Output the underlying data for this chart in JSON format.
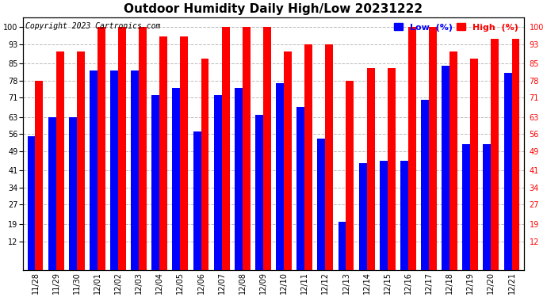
{
  "title": "Outdoor Humidity Daily High/Low 20231222",
  "copyright": "Copyright 2023 Cartronics.com",
  "yticks": [
    12,
    19,
    27,
    34,
    41,
    49,
    56,
    63,
    71,
    78,
    85,
    93,
    100
  ],
  "ylim": [
    0,
    104
  ],
  "categories": [
    "11/28",
    "11/29",
    "11/30",
    "12/01",
    "12/02",
    "12/03",
    "12/04",
    "12/05",
    "12/06",
    "12/07",
    "12/08",
    "12/09",
    "12/10",
    "12/11",
    "12/12",
    "12/13",
    "12/14",
    "12/15",
    "12/16",
    "12/17",
    "12/18",
    "12/19",
    "12/20",
    "12/21"
  ],
  "high_values": [
    78,
    90,
    90,
    100,
    100,
    100,
    96,
    96,
    87,
    100,
    100,
    100,
    90,
    93,
    93,
    78,
    83,
    83,
    100,
    100,
    90,
    87,
    95,
    95
  ],
  "low_values": [
    55,
    63,
    63,
    82,
    82,
    82,
    72,
    75,
    57,
    72,
    75,
    64,
    77,
    67,
    54,
    20,
    44,
    45,
    45,
    70,
    84,
    52,
    52,
    81
  ],
  "high_color": "#FF0000",
  "low_color": "#0000FF",
  "bg_color": "#FFFFFF",
  "grid_color": "#BBBBBB",
  "title_fontsize": 11,
  "legend_fontsize": 8,
  "tick_fontsize": 7,
  "bar_width": 0.38,
  "copyright_fontsize": 7
}
